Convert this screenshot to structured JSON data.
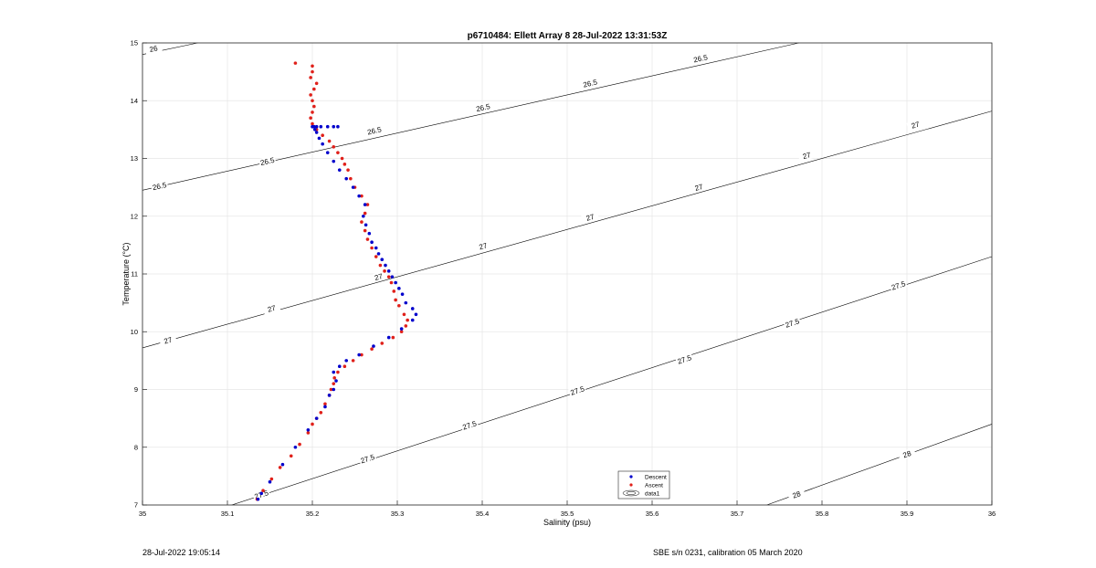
{
  "footer": {
    "left": "28-Jul-2022 19:05:14",
    "right": "SBE s/n 0231, calibration 05 March 2020"
  },
  "chart_data": {
    "type": "scatter",
    "title": "p6710484: Ellett Array 8 28-Jul-2022 13:31:53Z",
    "xlabel": "Salinity (psu)",
    "ylabel": "Temperature (°C)",
    "xlim": [
      35,
      36
    ],
    "ylim": [
      7,
      15
    ],
    "xticks": [
      "35",
      "35.1",
      "35.2",
      "35.3",
      "35.4",
      "35.5",
      "35.6",
      "35.7",
      "35.8",
      "35.9",
      "36"
    ],
    "yticks": [
      "7",
      "8",
      "9",
      "10",
      "11",
      "12",
      "13",
      "14",
      "15"
    ],
    "grid": true,
    "legend_position": "bottom-center",
    "legend": [
      "Descent",
      "Ascent",
      "data1"
    ],
    "colors": {
      "descent": "#0000cc",
      "ascent": "#e0201a",
      "contour": "#000000",
      "grid": "#e6e6e6"
    },
    "series": [
      {
        "name": "Descent",
        "color": "#0000cc",
        "x": [
          35.136,
          35.14,
          35.15,
          35.165,
          35.18,
          35.195,
          35.205,
          35.215,
          35.22,
          35.225,
          35.228,
          35.225,
          35.232,
          35.24,
          35.255,
          35.272,
          35.29,
          35.305,
          35.318,
          35.322,
          35.318,
          35.31,
          35.306,
          35.302,
          35.298,
          35.294,
          35.29,
          35.286,
          35.282,
          35.278,
          35.275,
          35.27,
          35.267,
          35.263,
          35.26,
          35.262,
          35.255,
          35.248,
          35.24,
          35.232,
          35.225,
          35.218,
          35.212,
          35.208,
          35.205,
          35.203,
          35.2,
          35.202,
          35.205,
          35.21,
          35.218,
          35.225,
          35.23
        ],
        "y": [
          7.1,
          7.2,
          7.4,
          7.7,
          8.0,
          8.3,
          8.5,
          8.7,
          8.9,
          9.0,
          9.15,
          9.3,
          9.4,
          9.5,
          9.6,
          9.75,
          9.9,
          10.05,
          10.2,
          10.3,
          10.4,
          10.5,
          10.65,
          10.75,
          10.85,
          10.95,
          11.05,
          11.15,
          11.25,
          11.35,
          11.45,
          11.55,
          11.7,
          11.85,
          12.0,
          12.2,
          12.35,
          12.5,
          12.65,
          12.8,
          12.95,
          13.1,
          13.25,
          13.35,
          13.45,
          13.5,
          13.55,
          13.55,
          13.55,
          13.55,
          13.55,
          13.55,
          13.55
        ]
      },
      {
        "name": "Ascent",
        "color": "#e0201a",
        "x": [
          35.135,
          35.142,
          35.152,
          35.162,
          35.175,
          35.185,
          35.195,
          35.2,
          35.205,
          35.21,
          35.215,
          35.22,
          35.222,
          35.225,
          35.226,
          35.23,
          35.238,
          35.248,
          35.258,
          35.27,
          35.282,
          35.295,
          35.305,
          35.31,
          35.312,
          35.308,
          35.302,
          35.298,
          35.296,
          35.293,
          35.29,
          35.285,
          35.28,
          35.275,
          35.27,
          35.265,
          35.262,
          35.258,
          35.262,
          35.265,
          35.258,
          35.25,
          35.245,
          35.242,
          35.238,
          35.235,
          35.23,
          35.225,
          35.22,
          35.212,
          35.205,
          35.2,
          35.198,
          35.2,
          35.202,
          35.2,
          35.198,
          35.202,
          35.205,
          35.198,
          35.2,
          35.2,
          35.18
        ],
        "y": [
          7.1,
          7.25,
          7.45,
          7.65,
          7.85,
          8.05,
          8.25,
          8.4,
          8.5,
          8.6,
          8.75,
          8.9,
          9.0,
          9.1,
          9.2,
          9.3,
          9.4,
          9.5,
          9.6,
          9.7,
          9.8,
          9.9,
          10.0,
          10.1,
          10.2,
          10.3,
          10.45,
          10.55,
          10.7,
          10.85,
          10.95,
          11.05,
          11.15,
          11.3,
          11.45,
          11.6,
          11.75,
          11.9,
          12.05,
          12.2,
          12.35,
          12.5,
          12.65,
          12.8,
          12.9,
          13.0,
          13.1,
          13.2,
          13.3,
          13.4,
          13.5,
          13.6,
          13.7,
          13.8,
          13.9,
          14.0,
          14.1,
          14.2,
          14.3,
          14.4,
          14.5,
          14.6,
          14.65
        ]
      }
    ],
    "contours": [
      {
        "level": "26",
        "line": [
          [
            35.0,
            14.8
          ],
          [
            35.065,
            15.0
          ]
        ],
        "labels": [
          [
            35.013,
            14.9
          ]
        ]
      },
      {
        "level": "26.5",
        "line": [
          [
            35.0,
            12.45
          ],
          [
            36.0,
            15.75
          ]
        ],
        "labels": [
          [
            35.02,
            12.52
          ],
          [
            35.147,
            12.95
          ],
          [
            35.273,
            13.48
          ],
          [
            35.401,
            13.88
          ],
          [
            35.527,
            14.3
          ],
          [
            35.657,
            14.73
          ],
          [
            35.785,
            15.15
          ]
        ]
      },
      {
        "level": "27",
        "line": [
          [
            35.0,
            9.72
          ],
          [
            36.0,
            13.82
          ]
        ],
        "labels": [
          [
            35.03,
            9.85
          ],
          [
            35.152,
            10.4
          ],
          [
            35.278,
            10.95
          ],
          [
            35.401,
            11.48
          ],
          [
            35.527,
            11.98
          ],
          [
            35.655,
            12.5
          ],
          [
            35.782,
            13.05
          ],
          [
            35.91,
            13.58
          ]
        ]
      },
      {
        "level": "27.5",
        "line": [
          [
            35.105,
            7.0
          ],
          [
            36.0,
            11.3
          ]
        ],
        "labels": [
          [
            35.14,
            7.18
          ],
          [
            35.265,
            7.8
          ],
          [
            35.385,
            8.38
          ],
          [
            35.512,
            8.98
          ],
          [
            35.638,
            9.52
          ],
          [
            35.765,
            10.15
          ],
          [
            35.89,
            10.8
          ]
        ]
      },
      {
        "level": "28",
        "line": [
          [
            35.735,
            7.0
          ],
          [
            36.0,
            8.4
          ]
        ],
        "labels": [
          [
            35.77,
            7.18
          ],
          [
            35.9,
            7.88
          ]
        ]
      }
    ]
  }
}
